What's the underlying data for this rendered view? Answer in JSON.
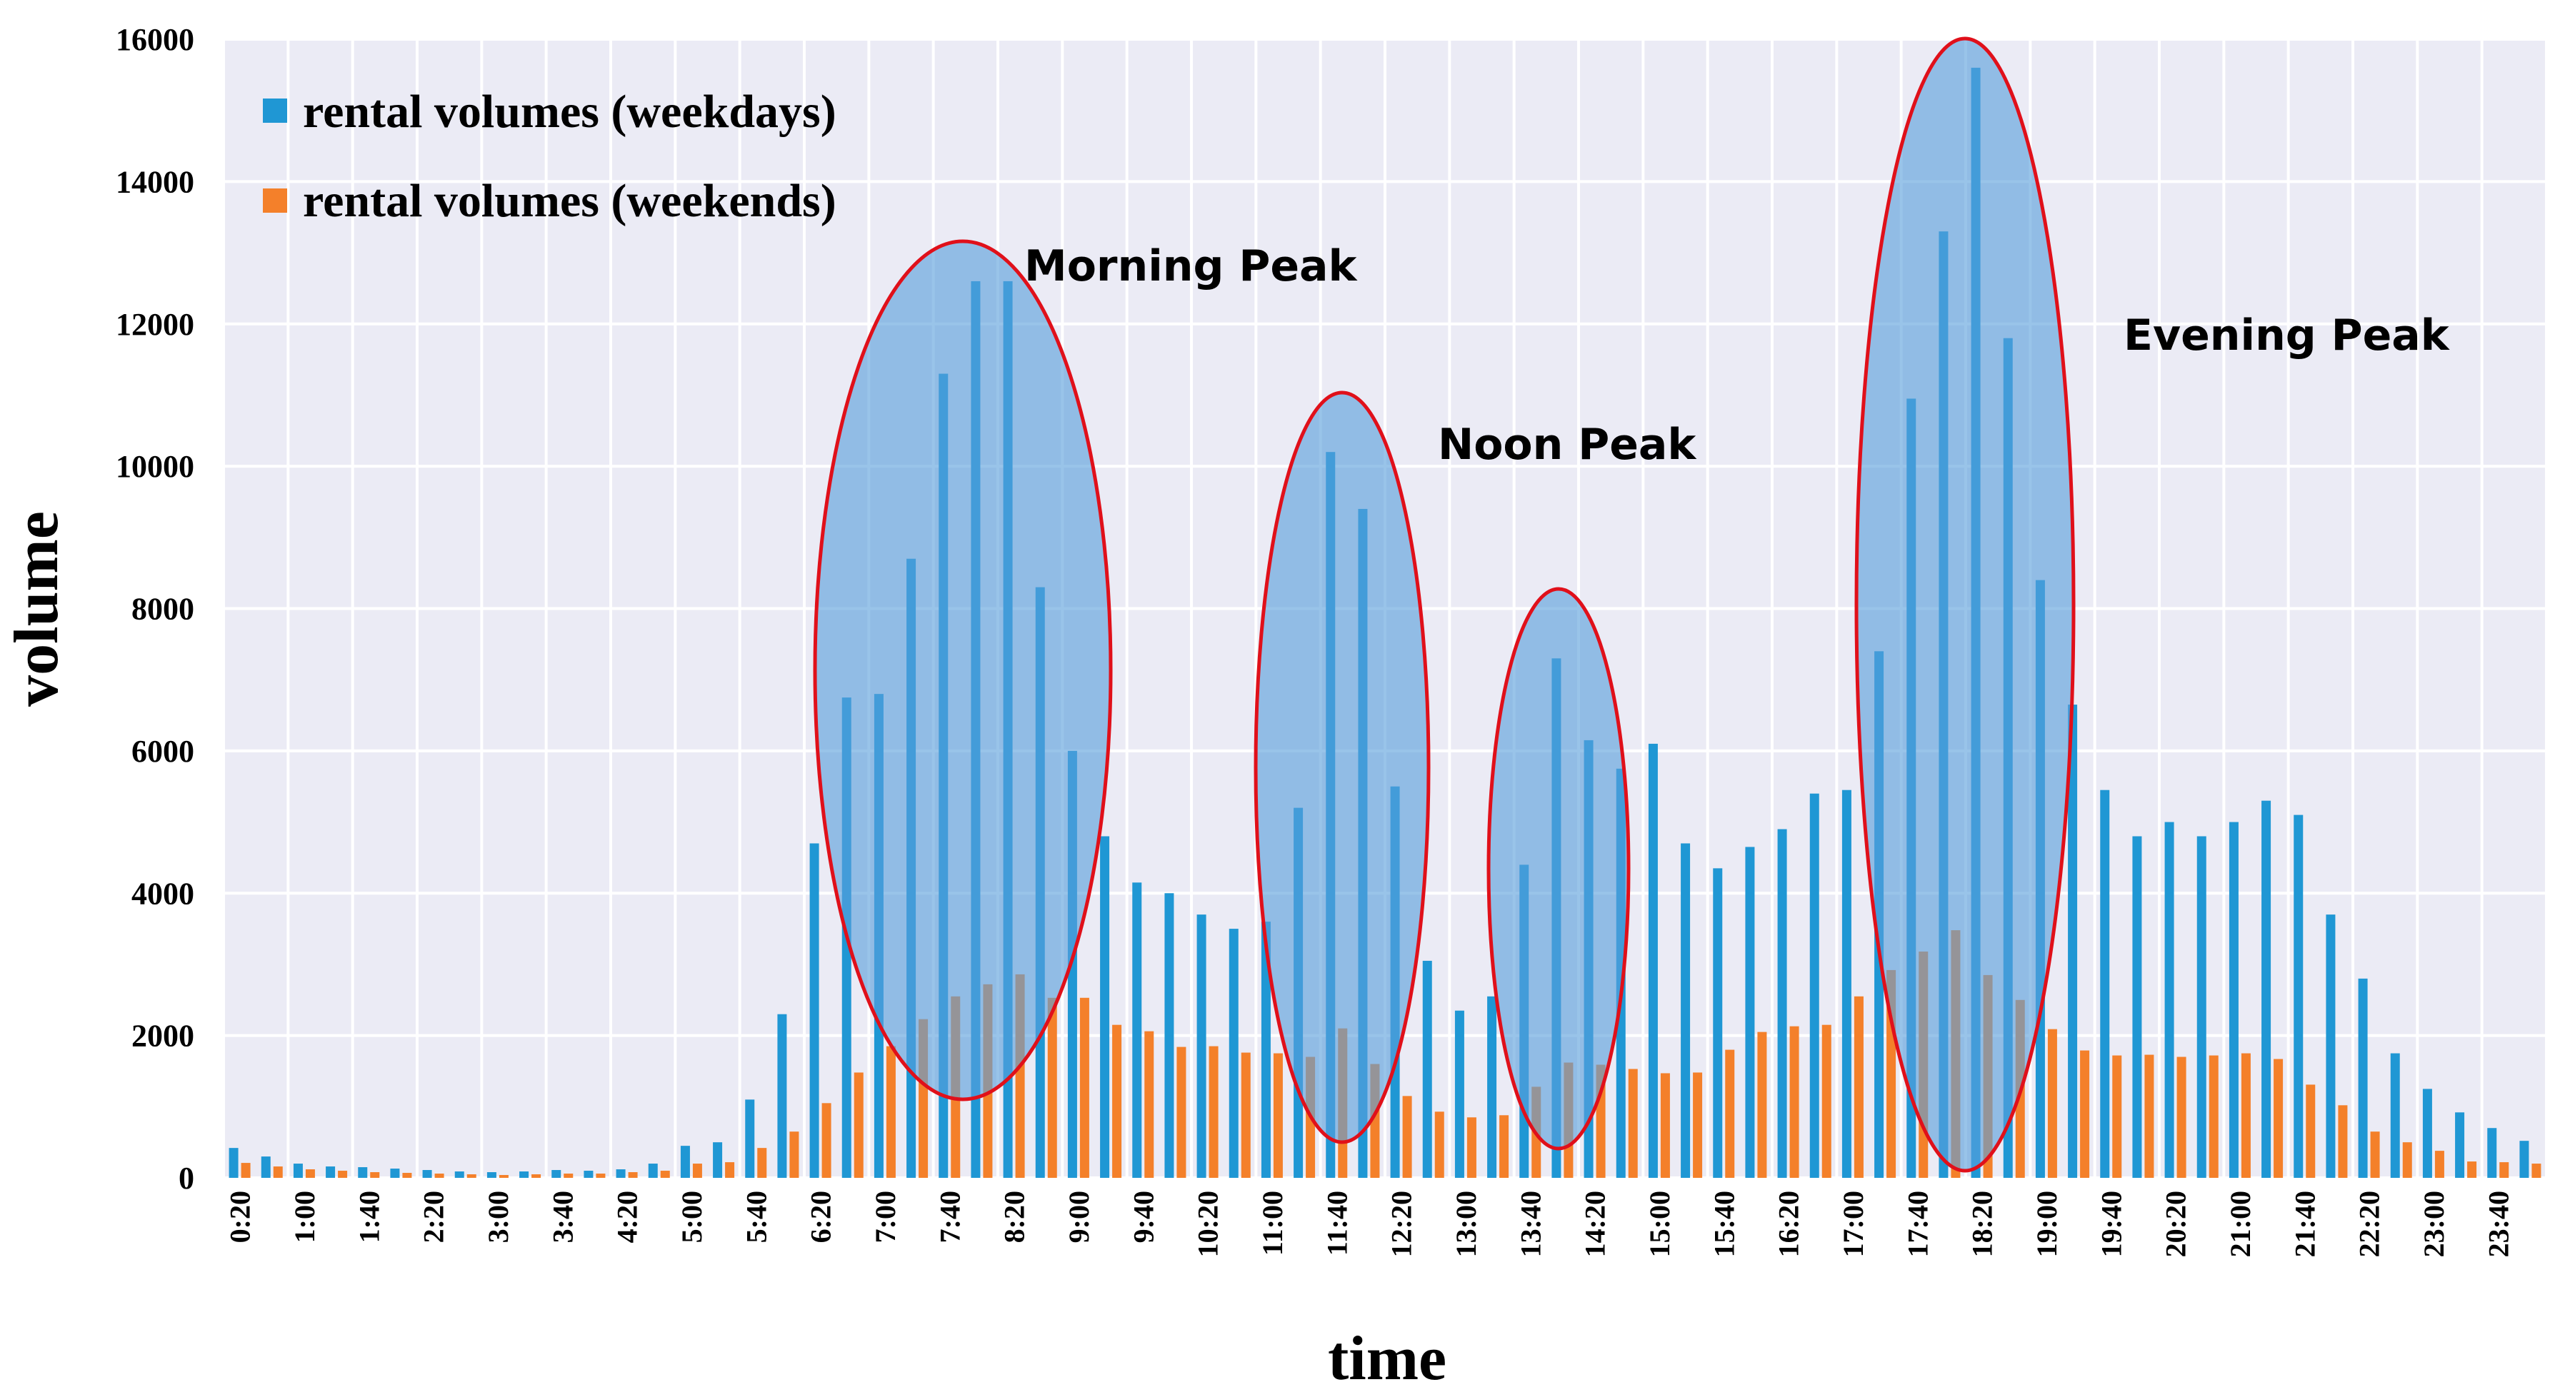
{
  "chart_data": {
    "type": "bar",
    "title": "",
    "xlabel": "time",
    "ylabel": "volume",
    "ylim": [
      0,
      16000
    ],
    "yticks": [
      0,
      2000,
      4000,
      6000,
      8000,
      10000,
      12000,
      14000,
      16000
    ],
    "grid": true,
    "legend_position": "top-left",
    "categories": [
      "0:20",
      "0:40",
      "1:00",
      "1:20",
      "1:40",
      "2:00",
      "2:20",
      "2:40",
      "3:00",
      "3:20",
      "3:40",
      "4:00",
      "4:20",
      "4:40",
      "5:00",
      "5:20",
      "5:40",
      "6:00",
      "6:20",
      "6:40",
      "7:00",
      "7:20",
      "7:40",
      "8:00",
      "8:20",
      "8:40",
      "9:00",
      "9:20",
      "9:40",
      "10:00",
      "10:20",
      "10:40",
      "11:00",
      "11:20",
      "11:40",
      "12:00",
      "12:20",
      "12:40",
      "13:00",
      "13:20",
      "13:40",
      "14:00",
      "14:20",
      "14:40",
      "15:00",
      "15:20",
      "15:40",
      "16:00",
      "16:20",
      "16:40",
      "17:00",
      "17:20",
      "17:40",
      "18:00",
      "18:20",
      "18:40",
      "19:00",
      "19:20",
      "19:40",
      "20:00",
      "20:20",
      "20:40",
      "21:00",
      "21:20",
      "21:40",
      "22:00",
      "22:20",
      "22:40",
      "23:00",
      "23:20",
      "23:40",
      "24:00"
    ],
    "xtick_labels": [
      "0:20",
      "1:00",
      "1:40",
      "2:20",
      "3:00",
      "3:40",
      "4:20",
      "5:00",
      "5:40",
      "6:20",
      "7:00",
      "7:40",
      "8:20",
      "9:00",
      "9:40",
      "10:20",
      "11:00",
      "11:40",
      "12:20",
      "13:00",
      "13:40",
      "14:20",
      "15:00",
      "15:40",
      "16:20",
      "17:00",
      "17:40",
      "18:20",
      "19:00",
      "19:40",
      "20:20",
      "21:00",
      "21:40",
      "22:20",
      "23:00",
      "23:40"
    ],
    "series": [
      {
        "name": "rental volumes (weekdays)",
        "color": "#1f97d4",
        "values": [
          420,
          300,
          200,
          160,
          150,
          130,
          110,
          90,
          80,
          90,
          110,
          100,
          120,
          200,
          450,
          500,
          1100,
          2300,
          4700,
          6750,
          6800,
          8700,
          11300,
          12600,
          12600,
          8300,
          6000,
          4800,
          4150,
          4000,
          3700,
          3500,
          3600,
          5200,
          10200,
          9400,
          5500,
          3050,
          2350,
          2550,
          4400,
          7300,
          6150,
          5750,
          6100,
          4700,
          4350,
          4650,
          4900,
          5400,
          5450,
          7400,
          10950,
          13300,
          15600,
          11800,
          8400,
          6650,
          5450,
          4800,
          5000,
          4800,
          5000,
          5300,
          5100,
          3700,
          2800,
          1750,
          1250,
          920,
          700,
          520
        ]
      },
      {
        "name": "rental volumes (weekends)",
        "color": "#f4802a",
        "values": [
          210,
          160,
          120,
          100,
          80,
          70,
          60,
          50,
          40,
          50,
          60,
          60,
          80,
          100,
          200,
          220,
          420,
          650,
          1050,
          1480,
          1850,
          2230,
          2550,
          2720,
          2860,
          2530,
          2530,
          2150,
          2060,
          1840,
          1850,
          1760,
          1750,
          1700,
          2100,
          1600,
          1150,
          930,
          850,
          880,
          1280,
          1620,
          1590,
          1530,
          1470,
          1480,
          1800,
          2050,
          2130,
          2150,
          2550,
          2920,
          3180,
          3480,
          2850,
          2500,
          2090,
          1790,
          1720,
          1730,
          1700,
          1720,
          1750,
          1670,
          1310,
          1020,
          650,
          500,
          380,
          230,
          220,
          200
        ]
      }
    ],
    "annotations": [
      {
        "text": "Morning Peak"
      },
      {
        "text": "Noon Peak"
      },
      {
        "text": "Evening Peak"
      }
    ]
  }
}
